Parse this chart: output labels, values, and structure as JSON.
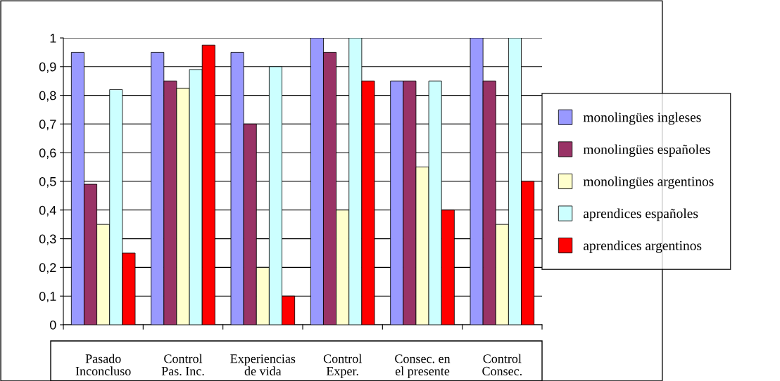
{
  "chart_data": {
    "type": "bar",
    "categories": [
      "Pasado\nInconcluso",
      "Control\nPas. Inc.",
      "Experiencias\nde vida",
      "Control\nExper.",
      "Consec. en\nel presente",
      "Control\nConsec."
    ],
    "series": [
      {
        "name": "monolingües ingleses",
        "color": "#9999ff",
        "values": [
          0.95,
          0.95,
          0.95,
          1,
          0.85,
          1
        ]
      },
      {
        "name": "monolingües españoles",
        "color": "#993366",
        "values": [
          0.49,
          0.85,
          0.7,
          0.95,
          0.85,
          0.85
        ]
      },
      {
        "name": "monolingües argentinos",
        "color": "#ffffcc",
        "values": [
          0.35,
          0.825,
          0.2,
          0.4,
          0.55,
          0.35
        ]
      },
      {
        "name": "aprendices españoles",
        "color": "#ccffff",
        "values": [
          0.82,
          0.89,
          0.9,
          1,
          0.85,
          1
        ]
      },
      {
        "name": "aprendices argentinos",
        "color": "#ff0000",
        "values": [
          0.25,
          0.975,
          0.1,
          0.85,
          0.4,
          0.5
        ]
      }
    ],
    "ylim": [
      0,
      1
    ],
    "yticks": [
      0,
      {
        "value": 0.1,
        "label": "0,1"
      },
      {
        "value": 0.2,
        "label": "0,2"
      },
      {
        "value": 0.3,
        "label": "0,3"
      },
      {
        "value": 0.4,
        "label": "0,4"
      },
      {
        "value": 0.5,
        "label": "0,5"
      },
      {
        "value": 0.6,
        "label": "0,6"
      },
      {
        "value": 0.7,
        "label": "0,7"
      },
      {
        "value": 0.8,
        "label": "0,8"
      },
      {
        "value": 0.9,
        "label": "0,9"
      },
      1
    ],
    "grid": "y",
    "legend": "right"
  }
}
